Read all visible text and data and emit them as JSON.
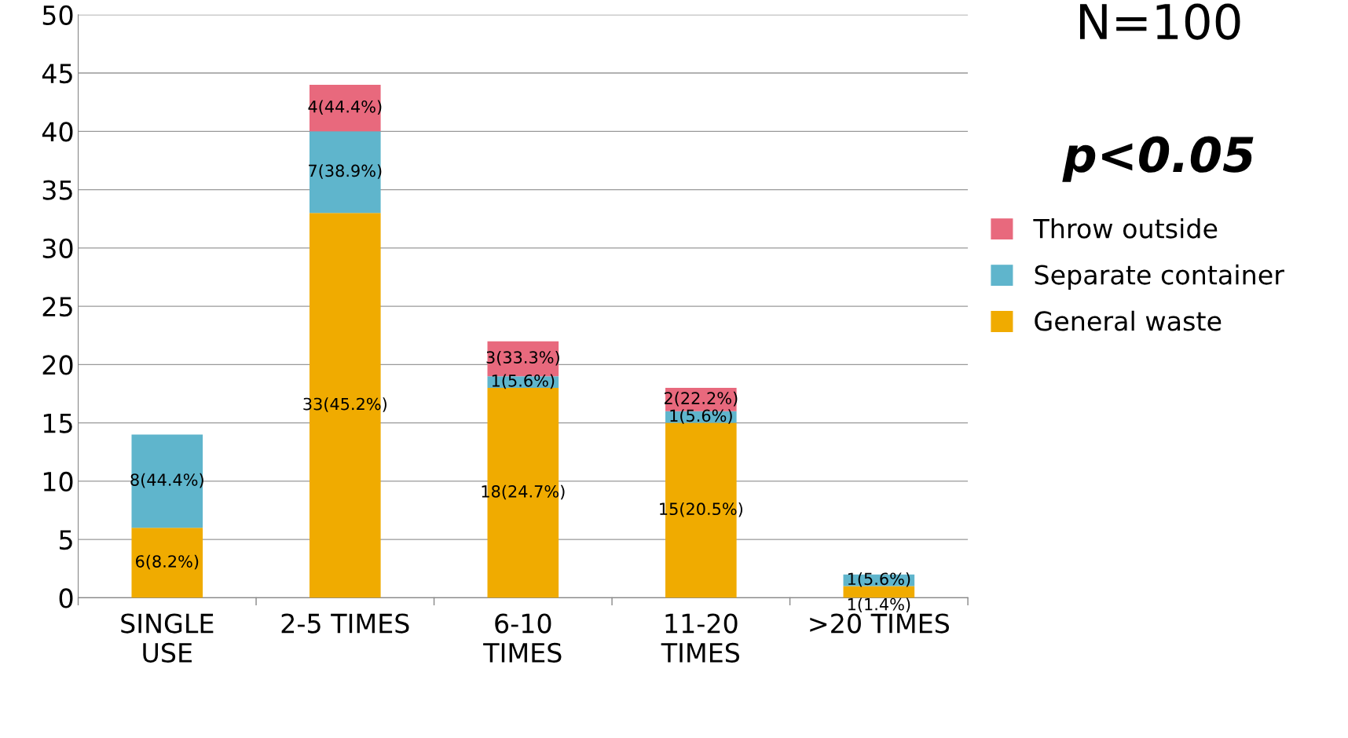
{
  "chart_data": {
    "type": "bar",
    "stacked": true,
    "categories": [
      "SINGLE\nUSE",
      "2-5 TIMES",
      "6-10\nTIMES",
      "11-20\nTIMES",
      ">20 TIMES"
    ],
    "series": [
      {
        "name": "General waste",
        "color": "#f0ab00",
        "values": [
          6,
          33,
          18,
          15,
          1
        ],
        "value_labels": [
          "6(8.2%)",
          "33(45.2%)",
          "18(24.7%)",
          "15(20.5%)",
          "1(1.4%)"
        ]
      },
      {
        "name": "Separate container",
        "color": "#5fb5cc",
        "values": [
          8,
          7,
          1,
          1,
          1
        ],
        "value_labels": [
          "8(44.4%)",
          "7(38.9%)",
          "1(5.6%)",
          "1(5.6%)",
          "1(5.6%)"
        ]
      },
      {
        "name": "Throw outside",
        "color": "#e8697d",
        "values": [
          null,
          4,
          3,
          2,
          null
        ],
        "value_labels": [
          null,
          "4(44.4%)",
          "3(33.3%)",
          "2(22.2%)",
          null
        ]
      }
    ],
    "ylim": [
      0,
      50
    ],
    "yticks": [
      0,
      5,
      10,
      15,
      20,
      25,
      30,
      35,
      40,
      45,
      50
    ],
    "grid": "y",
    "legend": "right",
    "annotations": [
      "N=100",
      "p<0.05"
    ]
  }
}
